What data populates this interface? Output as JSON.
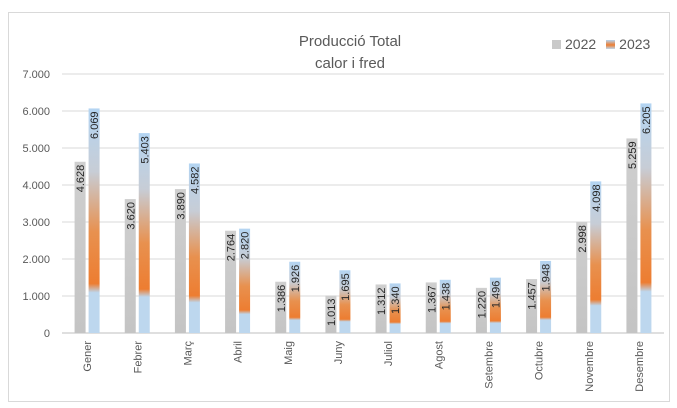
{
  "chart_data": {
    "type": "bar",
    "title": "Producció Total",
    "subtitle": "calor i fred",
    "categories": [
      "Gener",
      "Febrer",
      "Març",
      "Abril",
      "Maig",
      "Juny",
      "Juliol",
      "Agost",
      "Setembre",
      "Octubre",
      "Novembre",
      "Desembre"
    ],
    "series": [
      {
        "name": "2022",
        "values": [
          4628,
          3620,
          3890,
          2764,
          1386,
          1013,
          1312,
          1367,
          1220,
          1457,
          2998,
          5259
        ],
        "labels": [
          "4.628",
          "3.620",
          "3.890",
          "2.764",
          "1.386",
          "1.013",
          "1.312",
          "1.367",
          "1.220",
          "1.457",
          "2.998",
          "5.259"
        ]
      },
      {
        "name": "2023",
        "values": [
          6069,
          5403,
          4582,
          2820,
          1926,
          1695,
          1340,
          1438,
          1496,
          1948,
          4098,
          6205
        ],
        "labels": [
          "6.069",
          "5.403",
          "4.582",
          "2.820",
          "1.926",
          "1.695",
          "1.340",
          "1.438",
          "1.496",
          "1.948",
          "4.098",
          "6.205"
        ]
      }
    ],
    "ylim": [
      0,
      7000
    ],
    "yticks": [
      "0",
      "1.000",
      "2.000",
      "3.000",
      "4.000",
      "5.000",
      "6.000",
      "7.000"
    ],
    "grid": true,
    "legend_position": "top-right",
    "colors": {
      "s2022": "#c9c9c9",
      "s2023_top": "#b3d4f2",
      "s2023_mid": "#ed7d31",
      "s2023_bottom": "#bdd7ee",
      "grid": "#d9d9d9",
      "text": "#595959"
    }
  }
}
